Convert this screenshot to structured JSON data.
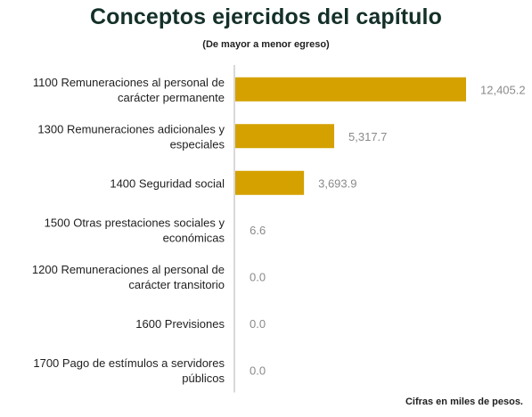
{
  "chart_data": {
    "type": "bar",
    "orientation": "horizontal",
    "title": "Conceptos ejercidos del capítulo",
    "subtitle": "(De mayor a menor egreso)",
    "note": "Cifras en miles de pesos.",
    "categories": [
      [
        "1100 Remuneraciones al personal de",
        "carácter permanente"
      ],
      [
        "1300 Remuneraciones adicionales y",
        "especiales"
      ],
      [
        "1400 Seguridad social"
      ],
      [
        "1500 Otras prestaciones sociales y",
        "económicas"
      ],
      [
        "1200 Remuneraciones al personal de",
        "carácter transitorio"
      ],
      [
        "1600 Previsiones"
      ],
      [
        "1700 Pago de estímulos a servidores",
        "públicos"
      ]
    ],
    "values": [
      12405.2,
      5317.7,
      3693.9,
      6.6,
      0.0,
      0.0,
      0.0
    ],
    "value_labels": [
      "12,405.2",
      "5,317.7",
      "3,693.9",
      "6.6",
      "0.0",
      "0.0",
      "0.0"
    ],
    "bar_color": "#D4A100",
    "axis_color": "#d9d9d9",
    "value_label_color": "#8a8a8a",
    "grid": false,
    "legend": "none"
  }
}
